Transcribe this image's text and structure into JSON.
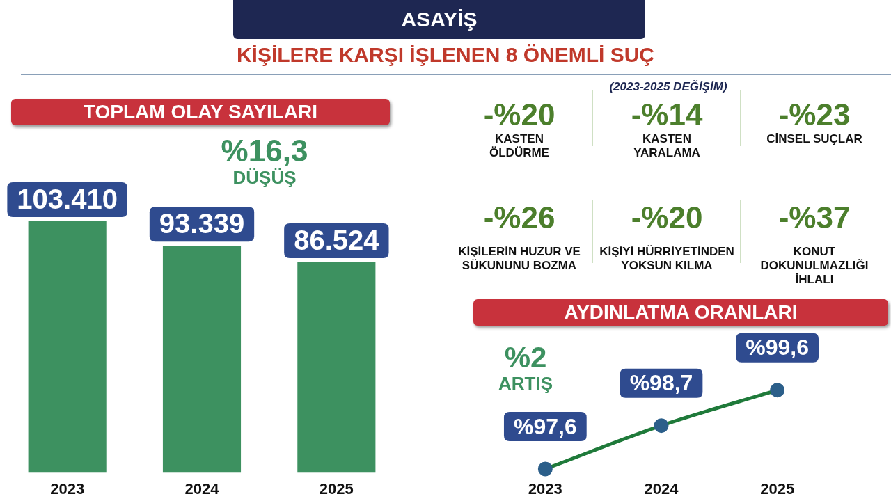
{
  "chart_data": [
    {
      "type": "other",
      "title": "ASAYİŞ",
      "subtitle": "KİŞİLERE KARŞI İŞLENEN 8 ÖNEMLİ SUÇ"
    },
    {
      "type": "bar",
      "title": "TOPLAM OLAY SAYILARI",
      "categories": [
        "2023",
        "2024",
        "2025"
      ],
      "values": [
        103410,
        93339,
        86524
      ],
      "color": "#3d9160",
      "value_labels": [
        "103.410",
        "93.339",
        "86.524"
      ],
      "tick_labels": "x",
      "grid": false,
      "legend": false,
      "annotations": [
        "%16,3",
        "DÜŞÜŞ"
      ]
    },
    {
      "type": "other",
      "title": "(2023-2025 DEĞİŞİM)",
      "annotations": [
        "-%20",
        "KASTEN ÖLDÜRME",
        "-%14",
        "KASTEN YARALAMA",
        "-%23",
        "CİNSEL SUÇLAR",
        "-%26",
        "KİŞİLERİN HUZUR VE SÜKUNUNU BOZMA",
        "-%20",
        "KİŞİYİ HÜRRİYETİNDEN YOKSUN KILMA",
        "-%37",
        "KONUT DOKUNULMAZLIĞI İHLALI"
      ]
    },
    {
      "type": "line",
      "title": "AYDINLATMA ORANLARI",
      "categories": [
        "2023",
        "2024",
        "2025"
      ],
      "values": [
        97.6,
        98.7,
        99.6
      ],
      "color": "#1f7a3a",
      "value_labels": [
        "%97,6",
        "%98,7",
        "%99,6"
      ],
      "marker": "circle",
      "tick_labels": "x",
      "grid": false,
      "legend": false,
      "annotations": [
        "%2",
        "ARTIŞ"
      ]
    }
  ]
}
